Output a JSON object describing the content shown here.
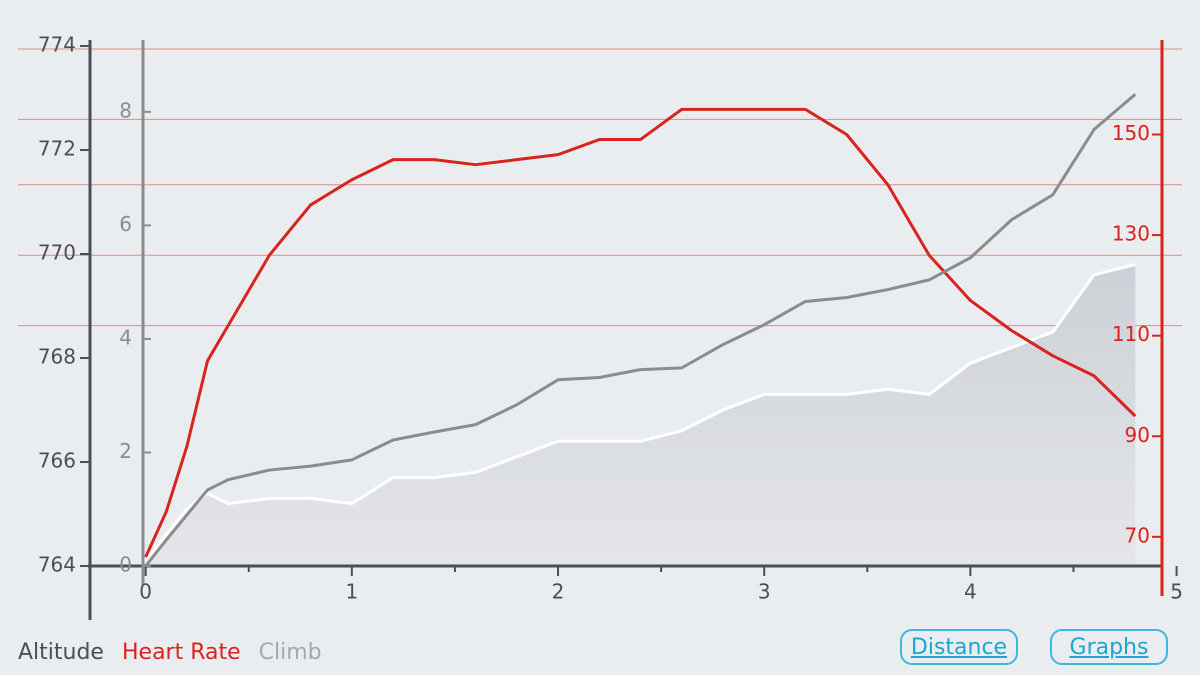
{
  "chart_data": {
    "type": "line",
    "x": [
      0,
      0.1,
      0.2,
      0.3,
      0.4,
      0.6,
      0.8,
      1.0,
      1.2,
      1.4,
      1.6,
      1.8,
      2.0,
      2.2,
      2.4,
      2.6,
      2.8,
      3.0,
      3.2,
      3.4,
      3.6,
      3.8,
      4.0,
      4.2,
      4.4,
      4.6,
      4.8
    ],
    "xlim": [
      -0.27,
      5.07
    ],
    "xticks": [
      0,
      1,
      2,
      3,
      4,
      5
    ],
    "xminor_ticks": [
      0.5,
      1.5,
      2.5,
      3.5,
      4.5
    ],
    "ylim": [
      764,
      774
    ],
    "yticks": [
      764,
      766,
      768,
      770,
      772,
      774
    ],
    "y2lim": [
      64.2,
      167.6
    ],
    "y2ticks": [
      70,
      90,
      110,
      130,
      150
    ],
    "y3lim": [
      0,
      9.16
    ],
    "y3ticks": [
      0,
      2,
      4,
      6,
      8
    ],
    "zone_lines": [
      112,
      126,
      140,
      153,
      167
    ],
    "zone_color": "#e08a87",
    "series": [
      {
        "name": "Altitude",
        "color": "#ffffff",
        "legend_color": "#4a4f57",
        "fill": true,
        "axis": "y",
        "values": [
          764.1,
          764.6,
          765.1,
          765.4,
          765.2,
          765.3,
          765.3,
          765.2,
          765.7,
          765.7,
          765.8,
          766.1,
          766.4,
          766.4,
          766.4,
          766.6,
          767.0,
          767.3,
          767.3,
          767.3,
          767.4,
          767.3,
          767.9,
          768.2,
          768.5,
          769.6,
          769.8
        ]
      },
      {
        "name": "Heart Rate",
        "color": "#d9231d",
        "legend_color": "#d9231d",
        "axis": "y2",
        "values": [
          66,
          75,
          88,
          105,
          112,
          126,
          136,
          141,
          145,
          145,
          144,
          145,
          146,
          149,
          149,
          155,
          155,
          155,
          155,
          150,
          140,
          126,
          117,
          111,
          106,
          102,
          94
        ]
      },
      {
        "name": "Climb",
        "color": "#8c8c8c",
        "legend_color": "#a8a8a8",
        "axis": "y3",
        "values": [
          0,
          0.46,
          0.9,
          1.34,
          1.52,
          1.69,
          1.76,
          1.87,
          2.22,
          2.36,
          2.49,
          2.84,
          3.28,
          3.32,
          3.46,
          3.49,
          3.9,
          4.25,
          4.66,
          4.73,
          4.87,
          5.04,
          5.43,
          6.1,
          6.54,
          7.69,
          8.31
        ]
      }
    ]
  },
  "buttons": [
    "Distance",
    "Graphs"
  ]
}
